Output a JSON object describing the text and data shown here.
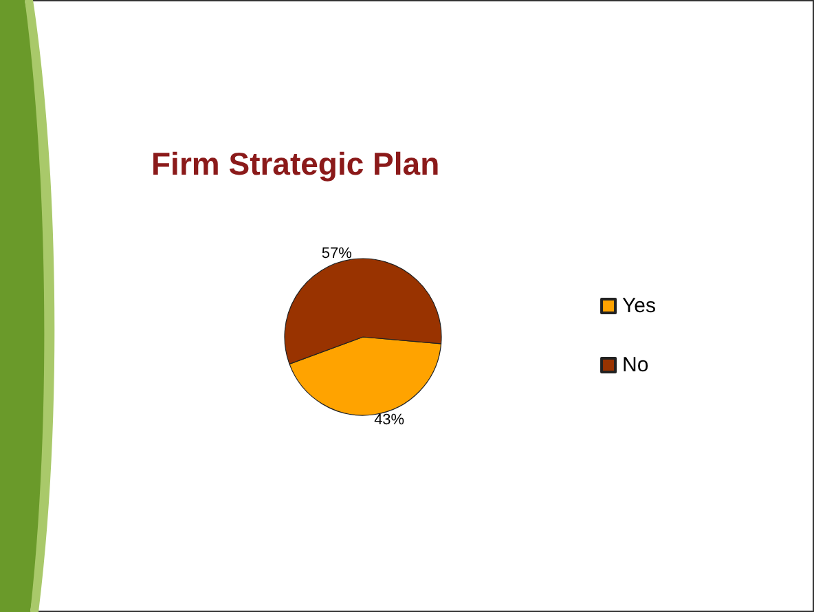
{
  "chart_data": {
    "type": "pie",
    "title": "Firm Strategic Plan",
    "categories": [
      "Yes",
      "No"
    ],
    "values": [
      43,
      57
    ],
    "colors": [
      "#ffa300",
      "#993300"
    ],
    "value_labels": [
      "43%",
      "57%"
    ],
    "legend": "right"
  }
}
